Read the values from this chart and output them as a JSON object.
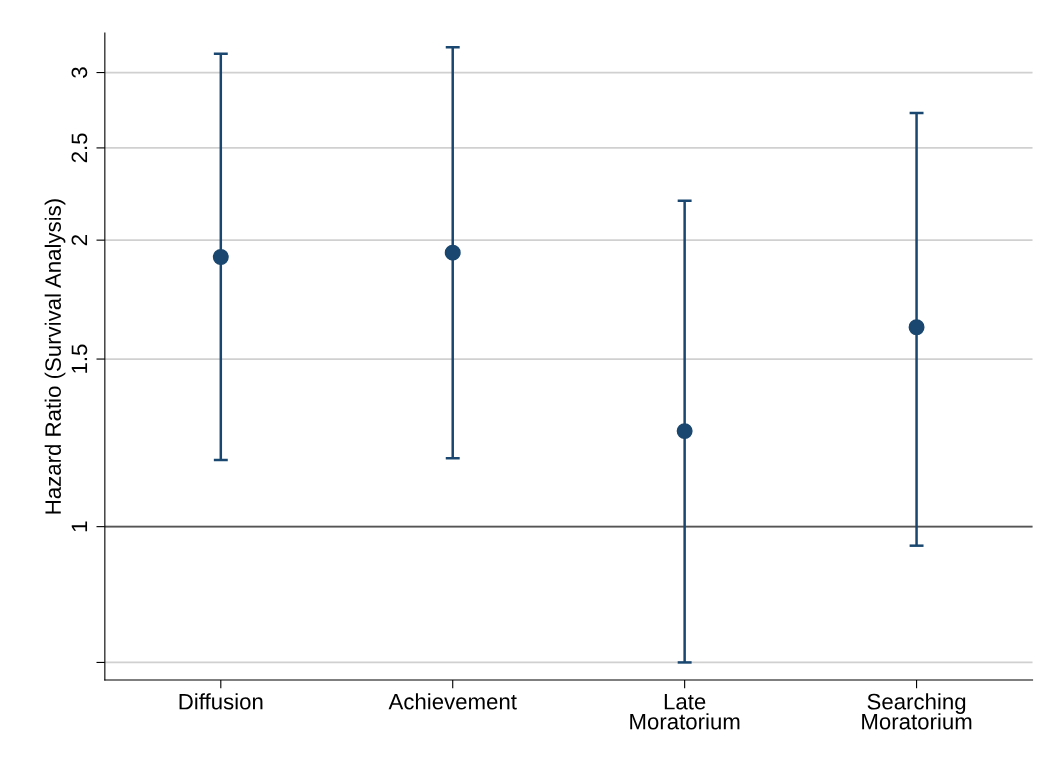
{
  "chart_data": {
    "type": "scatter",
    "ylabel": "Hazard Ratio (Survival Analysis)",
    "categories": [
      "Diffusion",
      "Achievement",
      "Late\nMoratorium",
      "Searching\nMoratorium"
    ],
    "series": [
      {
        "color": "#1a476f",
        "values": [
          1.92,
          1.94,
          1.26,
          1.62
        ],
        "errors": [
          [
            1.175,
            3.14
          ],
          [
            1.18,
            3.19
          ],
          [
            0.72,
            2.2
          ],
          [
            0.955,
            2.72
          ]
        ]
      }
    ],
    "log": true,
    "ylim": [
      0.69,
      3.3
    ],
    "yticks": [
      {
        "value": 0.72,
        "label": null
      },
      1,
      1.5,
      2,
      2.5,
      3
    ],
    "ref_lines": [
      {
        "axis": "y",
        "value": 1,
        "color": "#555555"
      }
    ],
    "grid": "y",
    "marker": "circle"
  }
}
